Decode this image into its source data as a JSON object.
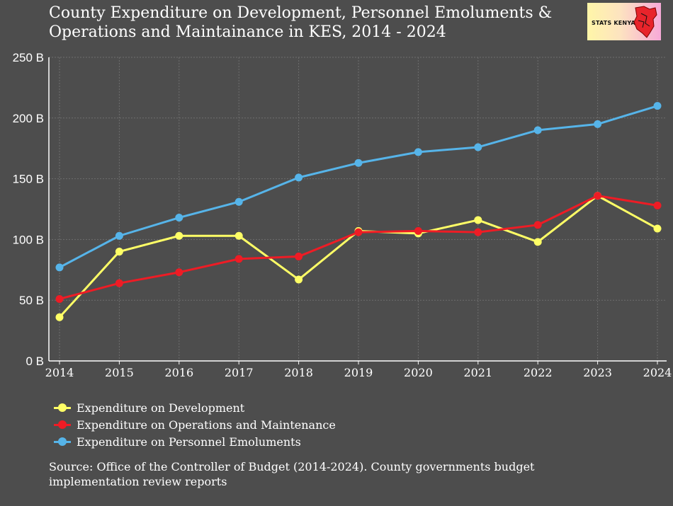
{
  "chart_data": {
    "type": "line",
    "title_lines": [
      "County Expenditure on Development, Personnel Emoluments &",
      "Operations and Maintainance in KES, 2014 - 2024"
    ],
    "x": [
      "2014",
      "2015",
      "2016",
      "2017",
      "2018",
      "2019",
      "2020",
      "2021",
      "2022",
      "2023",
      "2024"
    ],
    "ylim": [
      0,
      250
    ],
    "y_ticks": [
      0,
      50,
      100,
      150,
      200,
      250
    ],
    "y_tick_labels": [
      "0 B",
      "50 B",
      "100 B",
      "150 B",
      "200 B",
      "250 B"
    ],
    "xlabel": "",
    "ylabel": "",
    "grid": true,
    "series": [
      {
        "name": "Expenditure on Development",
        "color": "#ffff66",
        "values": [
          36,
          90,
          103,
          103,
          67,
          107,
          105,
          116,
          98,
          136,
          109
        ]
      },
      {
        "name": "Expenditure on Operations and Maintenance",
        "color": "#ee1c25",
        "values": [
          51,
          64,
          73,
          84,
          86,
          106,
          107,
          106,
          112,
          136,
          128
        ]
      },
      {
        "name": "Expenditure on Personnel Emoluments",
        "color": "#56b4e9",
        "values": [
          77,
          103,
          118,
          131,
          151,
          163,
          172,
          176,
          190,
          195,
          210
        ]
      }
    ],
    "legend_position": "bottom-left"
  },
  "logo": {
    "text": "STATS KENYA"
  },
  "source": "Source: Office of the Controller of Budget (2014-2024). County governments budget implementation review reports"
}
